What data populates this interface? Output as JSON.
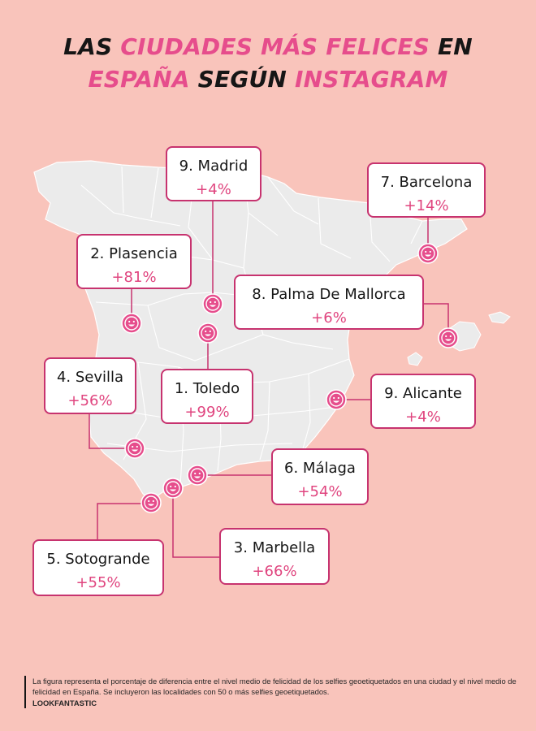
{
  "title": {
    "line1": [
      {
        "text": "LAS ",
        "pink": false
      },
      {
        "text": "CIUDADES MÁS FELICES ",
        "pink": true
      },
      {
        "text": "EN",
        "pink": false
      }
    ],
    "line2": [
      {
        "text": "ESPAÑA ",
        "pink": true
      },
      {
        "text": "SEGÚN ",
        "pink": false
      },
      {
        "text": "INSTAGRAM",
        "pink": true
      }
    ]
  },
  "colors": {
    "background": "#f9c4bb",
    "map_fill": "#ebebeb",
    "accent": "#e64d8c",
    "border": "#c7336f",
    "text": "#161616"
  },
  "marker_icon": "smiley-face-icon",
  "cities": [
    {
      "rank_name": "9. Madrid",
      "pct": "+4%"
    },
    {
      "rank_name": "7. Barcelona",
      "pct": "+14%"
    },
    {
      "rank_name": "2. Plasencia",
      "pct": "+81%"
    },
    {
      "rank_name": "8. Palma De Mallorca",
      "pct": "+6%"
    },
    {
      "rank_name": "4. Sevilla",
      "pct": "+56%"
    },
    {
      "rank_name": "1. Toledo",
      "pct": "+99%"
    },
    {
      "rank_name": "9. Alicante",
      "pct": "+4%"
    },
    {
      "rank_name": "6. Málaga",
      "pct": "+54%"
    },
    {
      "rank_name": "5. Sotogrande",
      "pct": "+55%"
    },
    {
      "rank_name": "3. Marbella",
      "pct": "+66%"
    }
  ],
  "footer": {
    "note": "La figura representa el porcentaje de diferencia entre el nivel medio de felicidad de los selfies geoetiquetados en una ciudad y el nivel medio de felicidad en España. Se incluyeron las localidades con 50 o más selfies geoetiquetados.",
    "brand": "LOOKFANTASTIC"
  }
}
